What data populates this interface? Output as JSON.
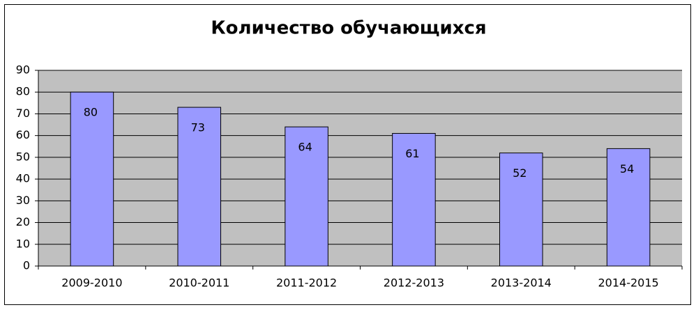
{
  "chart_data": {
    "type": "bar",
    "title": "Количество обучающихся",
    "categories": [
      "2009-2010",
      "2010-2011",
      "2011-2012",
      "2012-2013",
      "2013-2014",
      "2014-2015"
    ],
    "values": [
      80,
      73,
      64,
      61,
      52,
      54
    ],
    "color": "#9999ff",
    "ylim": [
      0,
      90
    ],
    "yticks": [
      0,
      10,
      20,
      30,
      40,
      50,
      60,
      70,
      80,
      90
    ],
    "grid": true
  }
}
